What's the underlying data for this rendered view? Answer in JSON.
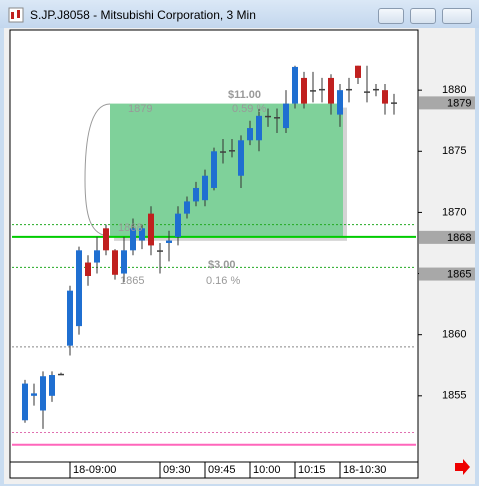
{
  "window_title": "S.JP.J8058 - Mitsubishi Corporation, 3 Min",
  "chart_data": {
    "type": "candlestick",
    "categories": [
      null,
      null,
      null,
      null,
      null,
      "18-09:00",
      null,
      null,
      null,
      null,
      null,
      null,
      null,
      null,
      null,
      "09:30",
      null,
      null,
      null,
      null,
      "09:45",
      null,
      null,
      null,
      null,
      "10:00",
      null,
      null,
      null,
      null,
      "10:15",
      null,
      null,
      null,
      null,
      "18-10:30",
      null,
      null,
      null,
      null,
      null,
      null
    ],
    "open": [
      1853,
      1855,
      1853.8,
      1855,
      1856.8,
      1859.1,
      1860.7,
      1865.9,
      1865.9,
      1868.7,
      1866.9,
      1865,
      1866.9,
      1867.7,
      1869.9,
      1866.9,
      1867.5,
      1868,
      1869.9,
      1870.9,
      1871,
      1872,
      1875,
      1875,
      1873,
      1875.9,
      1875.9,
      1877.9,
      1877.8,
      1876.9,
      1878.9,
      1881,
      1880,
      1880,
      1881,
      1878,
      1880,
      1882,
      1879.9,
      1880,
      1880,
      1879
    ],
    "high": [
      1856.3,
      1856,
      1857,
      1857,
      1856.9,
      1864,
      1867.2,
      1866.5,
      1868,
      1869,
      1867,
      1868,
      1869.5,
      1869,
      1870.5,
      1867.5,
      1868.5,
      1870.5,
      1871.3,
      1872.5,
      1873.5,
      1875.3,
      1876,
      1876,
      1876.3,
      1877.5,
      1878.5,
      1878.5,
      1878.5,
      1880,
      1882,
      1881.5,
      1881.5,
      1881,
      1881.3,
      1880.5,
      1881,
      1882,
      1882,
      1880.5,
      1880.5,
      1879.7
    ],
    "low": [
      1852.8,
      1854.2,
      1852.3,
      1854.5,
      1856.7,
      1858.3,
      1860,
      1864,
      1865,
      1866.5,
      1864.5,
      1864.3,
      1866.5,
      1867,
      1866.5,
      1865,
      1866,
      1867.3,
      1869.5,
      1870.5,
      1870.5,
      1871.8,
      1874,
      1874.5,
      1872,
      1875.5,
      1875,
      1877,
      1876.5,
      1876.5,
      1878.5,
      1878.5,
      1879,
      1879,
      1878,
      1877,
      1879,
      1880.5,
      1879,
      1879.5,
      1878,
      1878
    ],
    "close": [
      1856,
      1855.2,
      1856.6,
      1856.7,
      1856.8,
      1863.6,
      1866.9,
      1864.8,
      1866.9,
      1866.9,
      1864.9,
      1866.9,
      1868.7,
      1868.7,
      1867.3,
      1866.9,
      1867.7,
      1869.9,
      1870.9,
      1872,
      1873,
      1875,
      1875,
      1875.1,
      1875.9,
      1876.9,
      1877.9,
      1877.9,
      1877.8,
      1878.9,
      1881.9,
      1878.9,
      1880,
      1880.1,
      1878.9,
      1880,
      1880.1,
      1881,
      1879.9,
      1880.1,
      1878.9,
      1879
    ],
    "up_color": "#1f6fd1",
    "down_color": "#c0201f",
    "doji_color": "#404040",
    "ylim": [
      1849.75,
      1884.92
    ],
    "yticks": [
      1855,
      1860,
      1865,
      1870,
      1875,
      1880
    ],
    "price_labels": [
      1879,
      1868,
      1865
    ],
    "levels": [
      {
        "value": 1869,
        "color": "#22aa22",
        "style": "dotted"
      },
      {
        "value": 1868,
        "color": "#00cc00",
        "style": "solid"
      },
      {
        "value": 1865.5,
        "color": "#22aa22",
        "style": "dotted"
      },
      {
        "value": 1859,
        "color": "#888888",
        "style": "dotted"
      },
      {
        "value": 1852,
        "color": "#e070b0",
        "style": "dotted"
      },
      {
        "value": 1851,
        "color": "#ff66bb",
        "style": "solid"
      }
    ],
    "box": {
      "top": 1878.9,
      "bottom": 1868,
      "color": "#7fd19a"
    },
    "annotations": {
      "profit": "$11.00",
      "profit_pct": "0.59 %",
      "target": "1879",
      "risk": "$3.00",
      "risk_pct": "0.16 %",
      "stop": "1865",
      "entry": "1868"
    }
  }
}
